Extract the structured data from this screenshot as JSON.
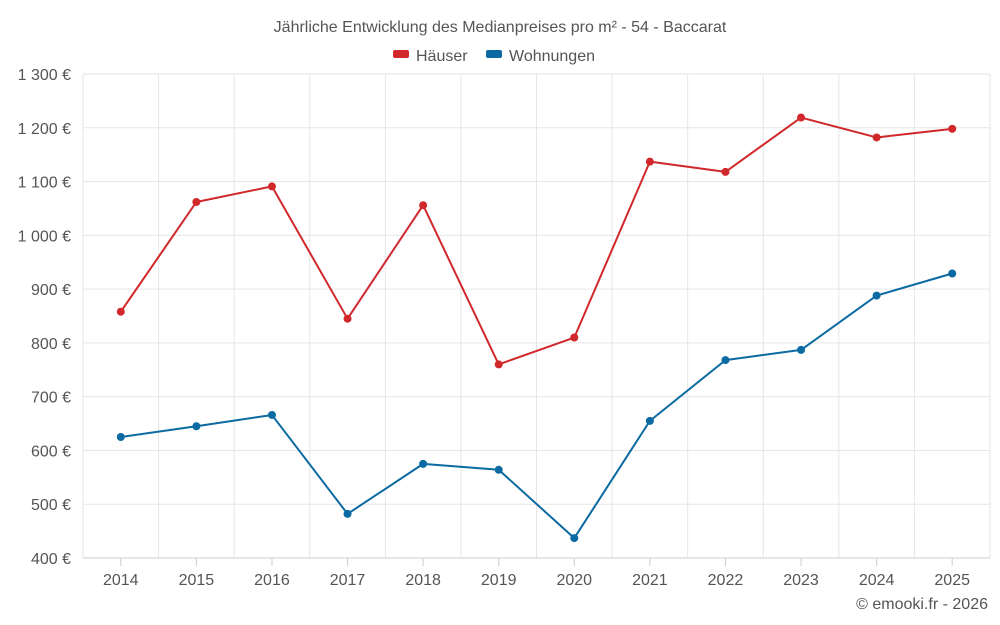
{
  "chart_data": {
    "type": "line",
    "title": "Jährliche Entwicklung des Medianpreises pro m² - 54 - Baccarat",
    "categories": [
      "2014",
      "2015",
      "2016",
      "2017",
      "2018",
      "2019",
      "2020",
      "2021",
      "2022",
      "2023",
      "2024",
      "2025"
    ],
    "series": [
      {
        "name": "Häuser",
        "color": "#d0282b",
        "values": [
          858,
          1062,
          1091,
          845,
          1056,
          760,
          810,
          1137,
          1118,
          1219,
          1182,
          1198
        ]
      },
      {
        "name": "Wohnungen",
        "color": "#0a6aa1",
        "values": [
          625,
          645,
          666,
          482,
          575,
          564,
          437,
          655,
          768,
          787,
          888,
          929
        ]
      }
    ],
    "ylim": [
      400,
      1300
    ],
    "yticks": [
      {
        "value": 400,
        "label": "400 €"
      },
      {
        "value": 500,
        "label": "500 €"
      },
      {
        "value": 600,
        "label": "600 €"
      },
      {
        "value": 700,
        "label": "700 €"
      },
      {
        "value": 800,
        "label": "800 €"
      },
      {
        "value": 900,
        "label": "900 €"
      },
      {
        "value": 1000,
        "label": "1 000 €"
      },
      {
        "value": 1100,
        "label": "1 100 €"
      },
      {
        "value": 1200,
        "label": "1 200 €"
      },
      {
        "value": 1300,
        "label": "1 300 €"
      }
    ],
    "xlabel": "",
    "ylabel": "",
    "grid": true,
    "legend_position": "top-center",
    "credit": "© emooki.fr - 2026"
  }
}
